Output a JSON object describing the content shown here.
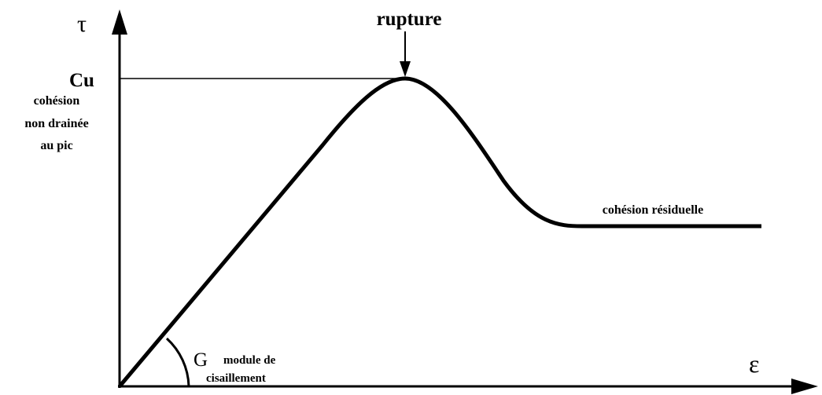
{
  "axes": {
    "y_label": "τ",
    "x_label": "ε"
  },
  "annotations": {
    "peak": "rupture",
    "peak_value": "Cu",
    "peak_description": [
      "cohésion",
      "non drainée",
      "au pic"
    ],
    "slope_symbol": "G",
    "slope_description": [
      "module de",
      "cisaillement"
    ],
    "residual": "cohésion résiduelle"
  }
}
